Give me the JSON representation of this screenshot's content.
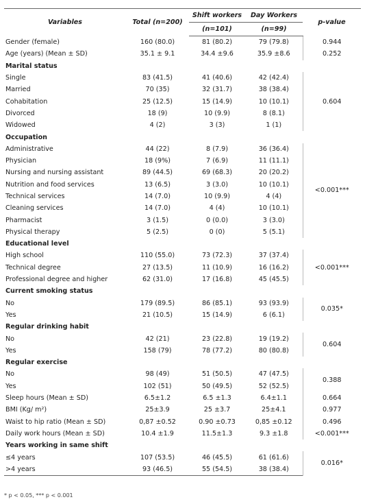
{
  "table": {
    "header": {
      "variables": "Variables",
      "total": "Total (n=200)",
      "shift": "Shift workers",
      "shift_n": "(n=101)",
      "day": "Day Workers",
      "day_n": "(n=99)",
      "p_value": "p-value"
    },
    "sections": [
      {
        "rows": [
          [
            "Gender (female)",
            "160 (80.0)",
            "81 (80.2)",
            "79 (79.8)"
          ]
        ],
        "p_value": "0.944"
      },
      {
        "rows": [
          [
            "Age (years) (Mean ± SD)",
            "35.1 ± 9.1",
            "34.4 ±9.6",
            "35.9 ±8.6"
          ]
        ],
        "p_value": "0.252"
      },
      {
        "heading": "Marital status",
        "rows": [
          [
            "Single",
            "83 (41.5)",
            "41 (40.6)",
            "42 (42.4)"
          ],
          [
            "Married",
            "70 (35)",
            "32 (31.7)",
            "38 (38.4)"
          ],
          [
            "Cohabitation",
            "25 (12.5)",
            "15 (14.9)",
            "10 (10.1)"
          ],
          [
            "Divorced",
            "18 (9)",
            "10 (9.9)",
            "8 (8.1)"
          ],
          [
            "Widowed",
            "4 (2)",
            "3 (3)",
            "1 (1)"
          ]
        ],
        "p_value": "0.604"
      },
      {
        "heading": "Occupation",
        "rows": [
          [
            "Administrative",
            "44 (22)",
            "8 (7.9)",
            "36 (36.4)"
          ],
          [
            "Physician",
            "18 (9%)",
            "7 (6.9)",
            "11 (11.1)"
          ],
          [
            "Nursing and nursing assistant",
            "89 (44.5)",
            "69 (68.3)",
            "20 (20.2)"
          ],
          [
            "Nutrition and food services",
            "13 (6.5)",
            "3 (3.0)",
            "10 (10.1)"
          ],
          [
            "Technical services",
            "14 (7.0)",
            "10 (9.9)",
            "4 (4)"
          ],
          [
            "Cleaning services",
            "14 (7.0)",
            "4 (4)",
            "10 (10.1)"
          ],
          [
            "Pharmacist",
            "3 (1.5)",
            "0 (0.0)",
            "3 (3.0)"
          ],
          [
            "Physical therapy",
            "5 (2.5)",
            "0 (0)",
            "5 (5.1)"
          ]
        ],
        "p_value": "<0.001***"
      },
      {
        "heading": "Educational level",
        "rows": [
          [
            "High school",
            "110 (55.0)",
            "73 (72.3)",
            "37 (37.4)"
          ],
          [
            "Technical degree",
            "27 (13.5)",
            "11 (10.9)",
            "16 (16.2)"
          ],
          [
            "Professional degree and higher",
            "62 (31.0)",
            "17 (16.8)",
            "45 (45.5)"
          ]
        ],
        "p_value": "<0.001***"
      },
      {
        "heading": "Current smoking status",
        "rows": [
          [
            "No",
            "179 (89.5)",
            "86 (85.1)",
            "93 (93.9)"
          ],
          [
            "Yes",
            "21 (10.5)",
            "15 (14.9)",
            "6 (6.1)"
          ]
        ],
        "p_value": "0.035*"
      },
      {
        "heading": "Regular drinking habit",
        "rows": [
          [
            "No",
            "42 (21)",
            "23 (22.8)",
            "19 (19.2)"
          ],
          [
            "Yes",
            "158 (79)",
            "78 (77.2)",
            "80 (80.8)"
          ]
        ],
        "p_value": "0.604"
      },
      {
        "heading": "Regular exercise",
        "rows": [
          [
            "No",
            "98 (49)",
            "51 (50.5)",
            "47 (47.5)"
          ],
          [
            "Yes",
            "102 (51)",
            "50 (49.5)",
            "52 (52.5)"
          ]
        ],
        "p_value": "0.388"
      },
      {
        "rows": [
          [
            "Sleep hours (Mean ± SD)",
            "6.5±1.2",
            "6.5 ±1.3",
            "6.4±1.1"
          ]
        ],
        "p_value": "0.664"
      },
      {
        "rows": [
          [
            "BMI (Kg/ m²)",
            "25±3.9",
            "25 ±3.7",
            "25±4.1"
          ]
        ],
        "p_value": "0.977"
      },
      {
        "rows": [
          [
            "Waist to hip ratio (Mean ± SD)",
            "0,87 ±0.52",
            "0.90 ±0.73",
            "0,85 ±0.12"
          ]
        ],
        "p_value": "0.496"
      },
      {
        "rows": [
          [
            "Daily work hours (Mean ± SD)",
            "10.4 ±1.9",
            "11.5±1.3",
            "9.3 ±1.8"
          ]
        ],
        "p_value": "<0.001***"
      },
      {
        "heading": "Years working in same shift",
        "rows": [
          [
            "≤4 years",
            "107 (53.5)",
            "46 (45.5)",
            "61 (61.6)"
          ],
          [
            ">4 years",
            "93 (46.5)",
            "55 (54.5)",
            "38 (38.4)"
          ]
        ],
        "p_value": "0.016*"
      }
    ],
    "footnote": "* p < 0.05, *** p < 0.001"
  }
}
